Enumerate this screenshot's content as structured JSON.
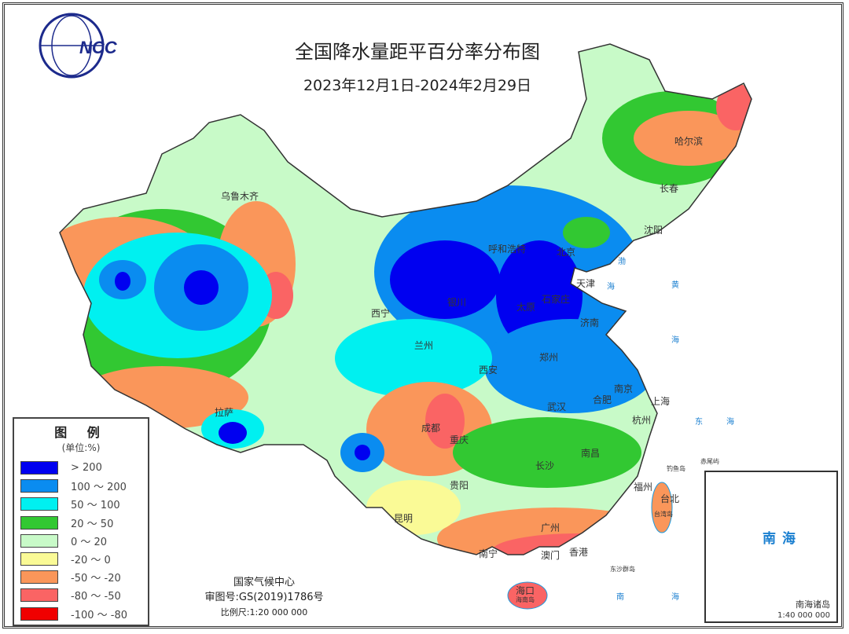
{
  "title": "全国降水量距平百分率分布图",
  "subtitle": "2023年12月1日-2024年2月29日",
  "logo_text": "中国 NCC",
  "legend": {
    "title": "图 例",
    "unit": "(单位:%)",
    "items": [
      {
        "label": "> 200",
        "color": "#0000f0"
      },
      {
        "label": "100 ～ 200",
        "color": "#0a8cf0"
      },
      {
        "label": "50 ～ 100",
        "color": "#00f0f0"
      },
      {
        "label": "20 ～ 50",
        "color": "#32c832"
      },
      {
        "label": "0 ～ 20",
        "color": "#c8fac8"
      },
      {
        "label": "-20 ～ 0",
        "color": "#fafa96"
      },
      {
        "label": "-50 ～ -20",
        "color": "#fa965a"
      },
      {
        "label": "-80 ～ -50",
        "color": "#fa6464"
      },
      {
        "label": "-100 ～ -80",
        "color": "#f00000"
      }
    ]
  },
  "credits": {
    "org": "国家气候中心",
    "approval": "审图号:GS(2019)1786号",
    "scale": "比例尺:1:20 000 000"
  },
  "inset": {
    "sea": "南海",
    "islands": "南海诸岛",
    "scale": "1:40 000 000"
  },
  "cities": [
    "乌鲁木齐",
    "哈尔滨",
    "长春",
    "沈阳",
    "呼和浩特",
    "北京",
    "天津",
    "石家庄",
    "太原",
    "济南",
    "银川",
    "西宁",
    "兰州",
    "西安",
    "郑州",
    "南京",
    "合肥",
    "上海",
    "杭州",
    "武汉",
    "成都",
    "重庆",
    "拉萨",
    "贵阳",
    "长沙",
    "南昌",
    "福州",
    "台北",
    "昆明",
    "南宁",
    "广州",
    "澳门",
    "香港",
    "海口"
  ],
  "seas": [
    "渤",
    "海",
    "黄",
    "海",
    "东",
    "海",
    "南",
    "海"
  ],
  "islands": [
    "台湾岛",
    "海南岛",
    "钓鱼岛",
    "赤尾屿",
    "东沙群岛"
  ]
}
